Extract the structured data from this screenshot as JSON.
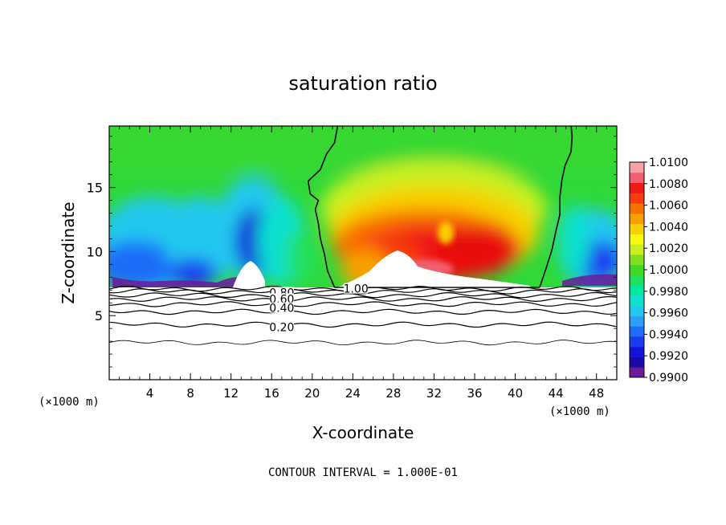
{
  "chart_data": {
    "type": "heatmap",
    "title": "saturation ratio",
    "xlabel": "X-coordinate",
    "ylabel": "Z-coordinate",
    "x_unit": "(×1000 m)",
    "xlim": [
      0,
      50
    ],
    "ylim": [
      0,
      19.8
    ],
    "x_ticks": [
      4,
      8,
      12,
      16,
      20,
      24,
      28,
      32,
      36,
      40,
      44,
      48
    ],
    "y_ticks": [
      5,
      10,
      15
    ],
    "footer": "CONTOUR INTERVAL = 1.000E-01",
    "colorbar": {
      "labels": [
        "1.0100",
        "1.0080",
        "1.0060",
        "1.0040",
        "1.0020",
        "1.0000",
        "0.9980",
        "0.9960",
        "0.9940",
        "0.9920",
        "0.9900"
      ],
      "levels": [
        0.99,
        0.991,
        0.992,
        0.993,
        0.994,
        0.995,
        0.996,
        0.997,
        0.998,
        0.999,
        1.0,
        1.001,
        1.002,
        1.003,
        1.004,
        1.005,
        1.006,
        1.007,
        1.008,
        1.009,
        1.01
      ],
      "colors": [
        "#6a1a9a",
        "#1a0aa8",
        "#1414d8",
        "#1a3cf0",
        "#1e6cf8",
        "#2aa0f8",
        "#22c8f0",
        "#10e0d0",
        "#00e8a0",
        "#20e060",
        "#40d820",
        "#80e020",
        "#c8f020",
        "#f8f810",
        "#f8d000",
        "#f8a000",
        "#f87000",
        "#f83c10",
        "#f01818",
        "#f06070",
        "#f8a0a8"
      ]
    },
    "contour_labels": [
      {
        "text": "1.00",
        "x": 24.3,
        "z": 7.1
      },
      {
        "text": "0.80",
        "x": 17.0,
        "z": 6.8
      },
      {
        "text": "0.60",
        "x": 17.0,
        "z": 6.3
      },
      {
        "text": "0.40",
        "x": 17.0,
        "z": 5.6
      },
      {
        "text": "0.20",
        "x": 17.0,
        "z": 4.1
      }
    ],
    "contour_lines_below_cloud_z": [
      2.9,
      4.3,
      5.3,
      5.9,
      6.3,
      6.6,
      6.9,
      7.1
    ],
    "cloud_base_z": 7.2,
    "s_equals_1_contours": [
      {
        "name": "left",
        "points": [
          [
            22.2,
            7.2
          ],
          [
            21.5,
            8.5
          ],
          [
            21.2,
            9.8
          ],
          [
            20.8,
            11.0
          ],
          [
            20.6,
            12.2
          ],
          [
            20.3,
            13.3
          ],
          [
            20.6,
            14.0
          ],
          [
            19.8,
            14.5
          ],
          [
            19.6,
            15.5
          ],
          [
            20.8,
            16.4
          ],
          [
            21.4,
            17.6
          ],
          [
            22.2,
            18.5
          ],
          [
            22.5,
            19.8
          ]
        ]
      },
      {
        "name": "right",
        "points": [
          [
            42.4,
            7.2
          ],
          [
            43.0,
            8.6
          ],
          [
            43.6,
            10.1
          ],
          [
            44.0,
            11.6
          ],
          [
            44.4,
            12.9
          ],
          [
            44.4,
            14.3
          ],
          [
            44.6,
            15.6
          ],
          [
            44.9,
            16.7
          ],
          [
            45.5,
            17.8
          ],
          [
            45.6,
            19.0
          ],
          [
            45.5,
            19.8
          ]
        ]
      }
    ],
    "saturation_field_samples": [
      {
        "x": 4,
        "z": 9.5,
        "s": 0.9952
      },
      {
        "x": 10,
        "z": 8.5,
        "s": 0.9938
      },
      {
        "x": 14,
        "z": 10.5,
        "s": 0.9922
      },
      {
        "x": 30,
        "z": 10.0,
        "s": 1.0064
      },
      {
        "x": 36,
        "z": 9.5,
        "s": 1.0072
      },
      {
        "x": 30,
        "z": 15.5,
        "s": 1.002
      },
      {
        "x": 48,
        "z": 9.5,
        "s": 0.993
      }
    ]
  }
}
